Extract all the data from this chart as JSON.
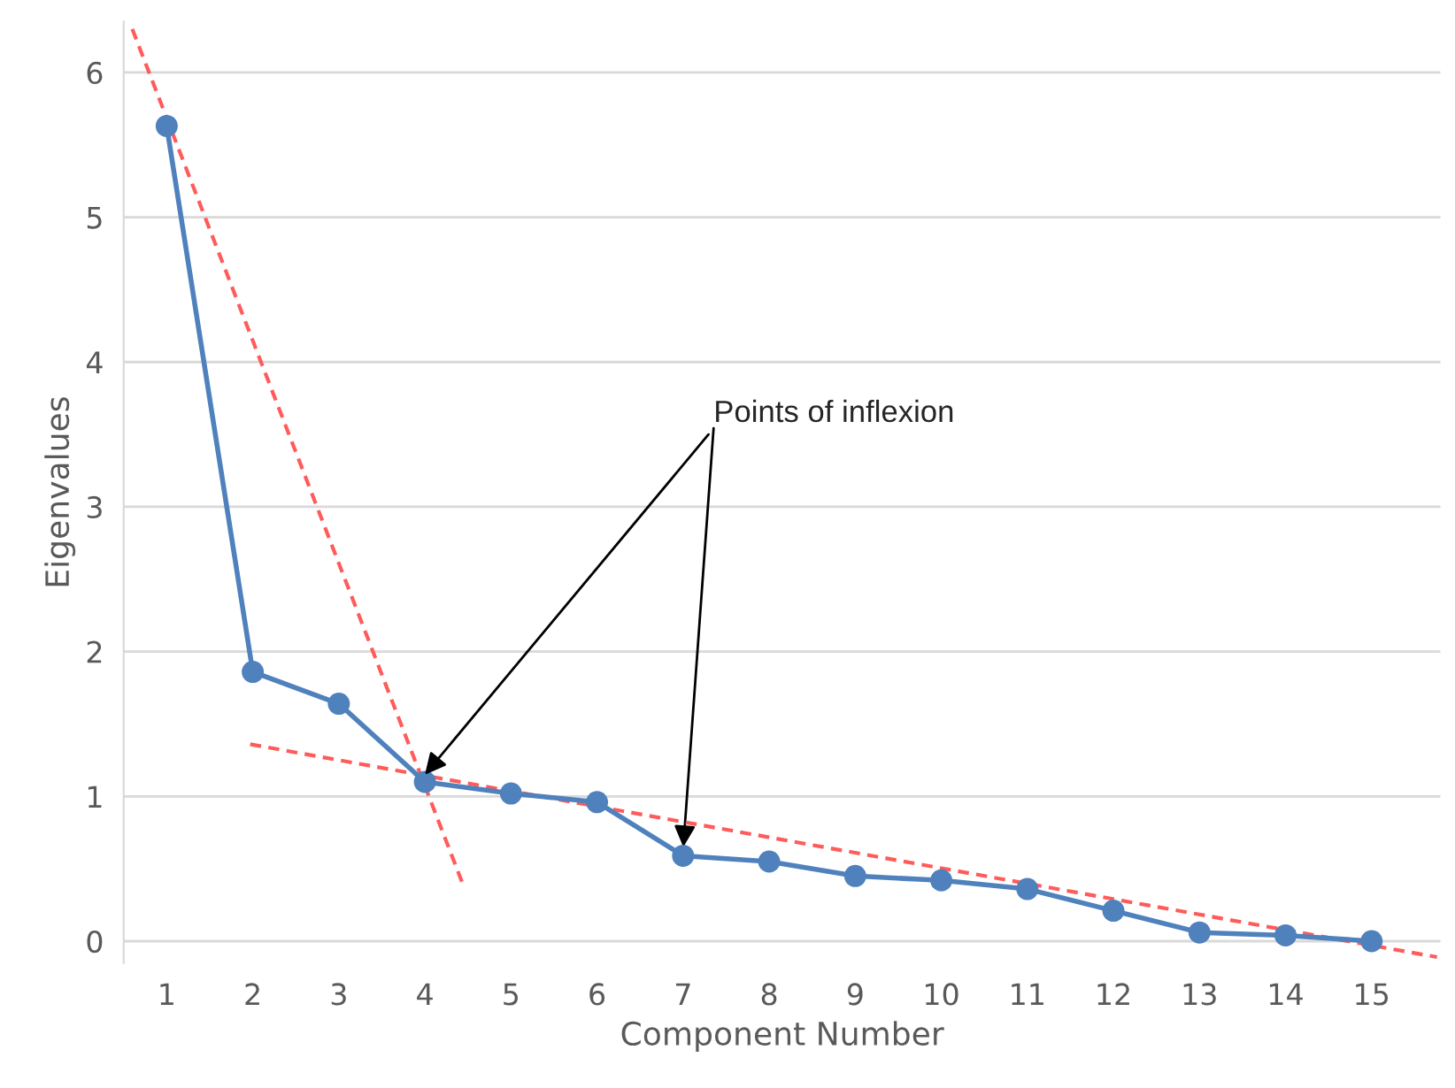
{
  "chart_data": {
    "type": "line",
    "xlabel": "Component Number",
    "ylabel": "Eigenvalues",
    "x": [
      1,
      2,
      3,
      4,
      5,
      6,
      7,
      8,
      9,
      10,
      11,
      12,
      13,
      14,
      15
    ],
    "series": [
      {
        "color": "#4f81bd",
        "marker": "circle",
        "line_style": "solid",
        "values": [
          5.63,
          1.86,
          1.64,
          1.1,
          1.02,
          0.96,
          0.59,
          0.55,
          0.45,
          0.42,
          0.36,
          0.21,
          0.06,
          0.04,
          0.0
        ]
      },
      {
        "color": "#ff5b5b",
        "marker": "none",
        "line_style": "dashed",
        "x": [
          0.6,
          4.45
        ],
        "values": [
          6.3,
          0.38
        ]
      },
      {
        "color": "#ff5b5b",
        "marker": "none",
        "line_style": "dashed",
        "x": [
          1.97,
          15.76
        ],
        "values": [
          1.36,
          -0.11
        ]
      }
    ],
    "xlim": [
      0.5,
      15.8
    ],
    "xticks": [
      1,
      2,
      3,
      4,
      5,
      6,
      7,
      8,
      9,
      10,
      11,
      12,
      13,
      14,
      15
    ],
    "ylim": [
      -0.15,
      6.35
    ],
    "yticks": [
      0,
      1,
      2,
      3,
      4,
      5,
      6
    ],
    "grid": "y",
    "legend": false,
    "annotations": [
      {
        "text": "Points of inflexion",
        "x": 4,
        "y": 1.15
      }
    ]
  }
}
